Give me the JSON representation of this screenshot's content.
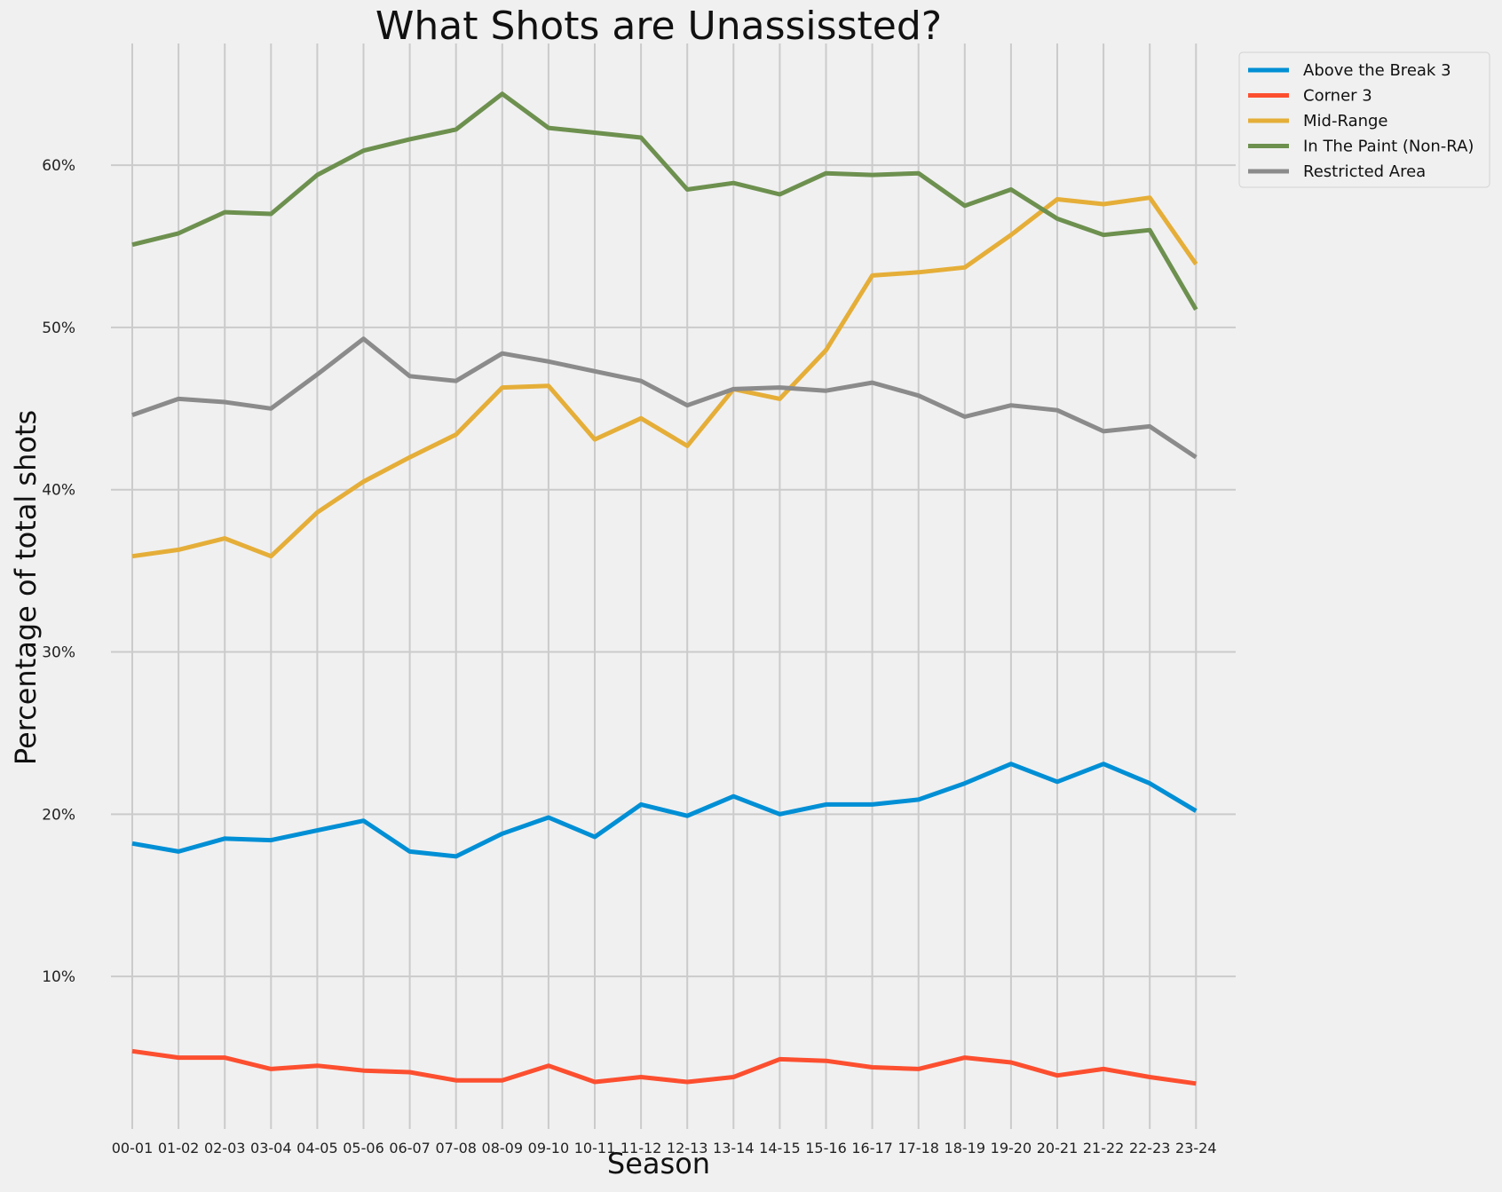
{
  "chart_data": {
    "type": "line",
    "title": "What Shots are Unassissted?",
    "xlabel": "Season",
    "ylabel": "Percentage of total shots",
    "categories": [
      "00-01",
      "01-02",
      "02-03",
      "03-04",
      "04-05",
      "05-06",
      "06-07",
      "07-08",
      "08-09",
      "09-10",
      "10-11",
      "11-12",
      "12-13",
      "13-14",
      "14-15",
      "15-16",
      "16-17",
      "17-18",
      "18-19",
      "19-20",
      "20-21",
      "21-22",
      "22-23",
      "23-24"
    ],
    "yticks": [
      10,
      20,
      30,
      40,
      50,
      60
    ],
    "ytick_labels": [
      "10%",
      "20%",
      "30%",
      "40%",
      "50%",
      "60%"
    ],
    "ylim": [
      0.6,
      67.5
    ],
    "grid": true,
    "legend_position": "outside top-right",
    "series": [
      {
        "name": "Above the Break 3",
        "color": "#008fd5",
        "values": [
          18.2,
          17.7,
          18.5,
          18.4,
          19.0,
          19.6,
          17.7,
          17.4,
          18.8,
          19.8,
          18.6,
          20.6,
          19.9,
          21.1,
          20.0,
          20.6,
          20.6,
          20.9,
          21.9,
          23.1,
          22.0,
          23.1,
          21.9,
          20.2
        ]
      },
      {
        "name": "Corner 3",
        "color": "#fc4f30",
        "values": [
          5.4,
          5.0,
          5.0,
          4.3,
          4.5,
          4.2,
          4.1,
          3.6,
          3.6,
          4.5,
          3.5,
          3.8,
          3.5,
          3.8,
          4.9,
          4.8,
          4.4,
          4.3,
          5.0,
          4.7,
          3.9,
          4.3,
          3.8,
          3.4
        ]
      },
      {
        "name": "Mid-Range",
        "color": "#e5ae38",
        "values": [
          35.9,
          36.3,
          37.0,
          35.9,
          38.6,
          40.5,
          42.0,
          43.4,
          46.3,
          46.4,
          43.1,
          44.4,
          42.7,
          46.2,
          45.6,
          48.6,
          53.2,
          53.4,
          53.7,
          55.7,
          57.9,
          57.6,
          58.0,
          53.9
        ]
      },
      {
        "name": "In The Paint (Non-RA)",
        "color": "#6d904f",
        "values": [
          55.1,
          55.8,
          57.1,
          57.0,
          59.4,
          60.9,
          61.6,
          62.2,
          64.4,
          62.3,
          62.0,
          61.7,
          58.5,
          58.9,
          58.2,
          59.5,
          59.4,
          59.5,
          57.5,
          58.5,
          56.7,
          55.7,
          56.0,
          51.1
        ]
      },
      {
        "name": "Restricted Area",
        "color": "#8b8b8b",
        "values": [
          44.6,
          45.6,
          45.4,
          45.0,
          47.1,
          49.3,
          47.0,
          46.7,
          48.4,
          47.9,
          47.3,
          46.7,
          45.2,
          46.2,
          46.3,
          46.1,
          46.6,
          45.8,
          44.5,
          45.2,
          44.9,
          43.6,
          43.9,
          42.0
        ]
      }
    ]
  }
}
